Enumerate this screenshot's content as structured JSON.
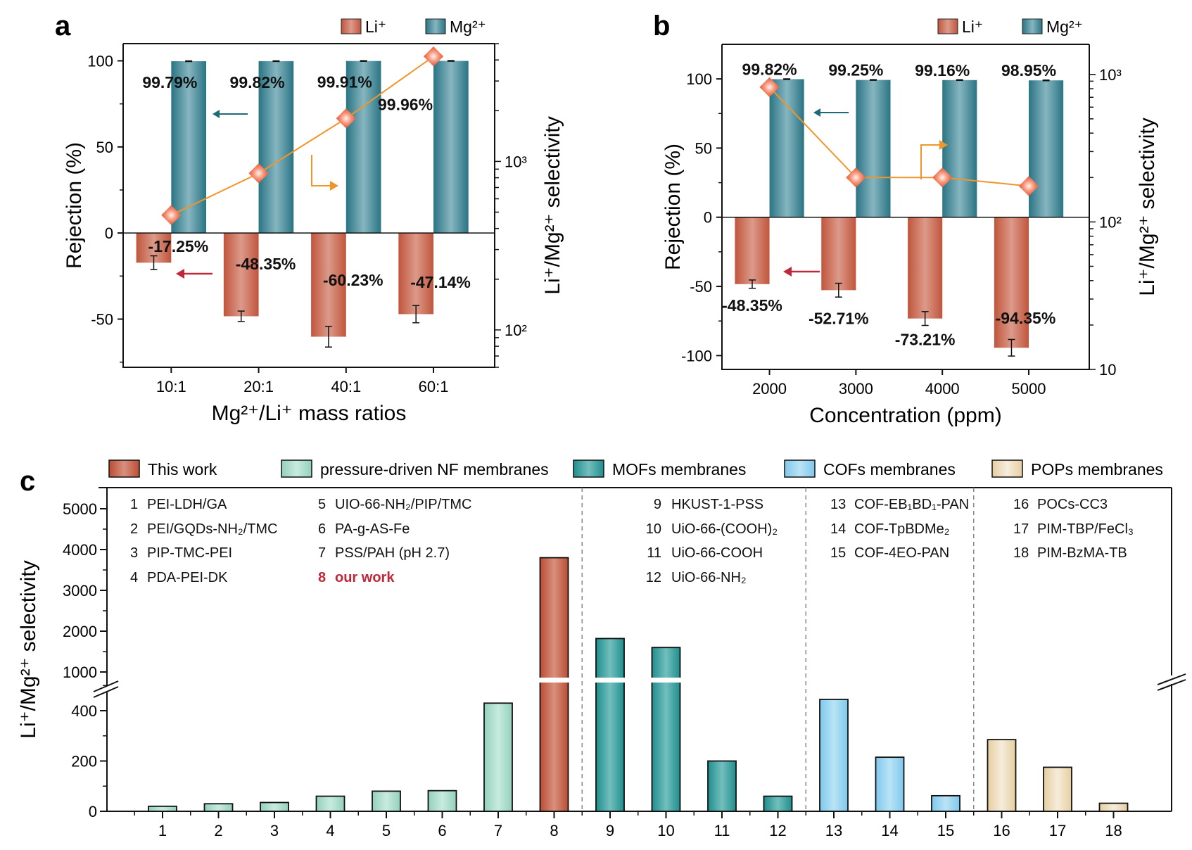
{
  "colors": {
    "li": "#c55a43",
    "mg": "#2f7f8c",
    "line": "#f0952a",
    "marker": "#f27c5a",
    "this_work": "#c55a43",
    "nf": "#a9dccb",
    "mofs": "#2b9a99",
    "cofs": "#8fd1ee",
    "pops": "#ecdcb7",
    "highlight_text": "#c0283a",
    "arrow_mg": "#1f6a78",
    "arrow_li": "#c0283a"
  },
  "chart_data": [
    {
      "panel": "a",
      "type": "bar",
      "panel_label": "a",
      "title": "",
      "xlabel": "Mg²⁺/Li⁺ mass ratios",
      "ylabel": "Rejection (%)",
      "y2label": "Li⁺/Mg²⁺ selectivity",
      "categories": [
        "10:1",
        "20:1",
        "40:1",
        "60:1"
      ],
      "ylim": [
        -78,
        110
      ],
      "yticks": [
        -50,
        0,
        50,
        100
      ],
      "ytick_labels": [
        "-50",
        "0",
        "50",
        "100"
      ],
      "y2_scale": "log",
      "y2lim": [
        60,
        5000
      ],
      "y2ticks": [
        100,
        1000
      ],
      "y2tick_labels": [
        "10²",
        "10³"
      ],
      "legend": [
        "Li⁺",
        "Mg²⁺"
      ],
      "legend_position": "top-right",
      "series": [
        {
          "name": "Li⁺",
          "axis": "left",
          "kind": "bar",
          "values": [
            -17.25,
            -48.35,
            -60.23,
            -47.14
          ],
          "errors": [
            4,
            3,
            6,
            5
          ],
          "labels": [
            "-17.25%",
            "-48.35%",
            "-60.23%",
            "-47.14%"
          ]
        },
        {
          "name": "Mg²⁺",
          "axis": "left",
          "kind": "bar",
          "values": [
            99.79,
            99.82,
            99.91,
            99.96
          ],
          "errors": [
            0.2,
            0.2,
            0.2,
            0.2
          ],
          "labels": [
            "99.79%",
            "99.82%",
            "99.91%",
            "99.96%"
          ]
        },
        {
          "name": "Li⁺/Mg²⁺ selectivity",
          "axis": "right",
          "kind": "line",
          "values": [
            480,
            850,
            1800,
            4200
          ]
        }
      ]
    },
    {
      "panel": "b",
      "type": "bar",
      "panel_label": "b",
      "title": "",
      "xlabel": "Concentration (ppm)",
      "ylabel": "Rejection (%)",
      "y2label": "Li⁺/Mg²⁺ selectivity",
      "categories": [
        "2000",
        "3000",
        "4000",
        "5000"
      ],
      "ylim": [
        -110,
        125
      ],
      "yticks": [
        -100,
        -50,
        0,
        50,
        100
      ],
      "ytick_labels": [
        "-100",
        "-50",
        "0",
        "50",
        "100"
      ],
      "y2_scale": "log",
      "y2lim": [
        10,
        1600
      ],
      "y2ticks": [
        10,
        100,
        1000
      ],
      "y2tick_labels": [
        "10",
        "10²",
        "10³"
      ],
      "legend": [
        "Li⁺",
        "Mg²⁺"
      ],
      "legend_position": "top-right",
      "series": [
        {
          "name": "Li⁺",
          "axis": "left",
          "kind": "bar",
          "values": [
            -48.35,
            -52.71,
            -73.21,
            -94.35
          ],
          "errors": [
            3,
            5,
            5,
            6
          ],
          "labels": [
            "-48.35%",
            "-52.71%",
            "-73.21%",
            "-94.35%"
          ]
        },
        {
          "name": "Mg²⁺",
          "axis": "left",
          "kind": "bar",
          "values": [
            99.82,
            99.25,
            99.16,
            98.95
          ],
          "errors": [
            0.3,
            0.3,
            0.3,
            0.3
          ],
          "labels": [
            "99.82%",
            "99.25%",
            "99.16%",
            "98.95%"
          ]
        },
        {
          "name": "Li⁺/Mg²⁺ selectivity",
          "axis": "right",
          "kind": "line",
          "values": [
            820,
            200,
            200,
            175
          ]
        }
      ]
    },
    {
      "panel": "c",
      "type": "bar",
      "panel_label": "c",
      "title": "",
      "xlabel": "",
      "ylabel": "Li⁺/Mg²⁺ selectivity",
      "categories": [
        "1",
        "2",
        "3",
        "4",
        "5",
        "6",
        "7",
        "8",
        "9",
        "10",
        "11",
        "12",
        "13",
        "14",
        "15",
        "16",
        "17",
        "18"
      ],
      "values": [
        20,
        30,
        35,
        60,
        80,
        82,
        430,
        3800,
        1820,
        1600,
        200,
        60,
        445,
        215,
        62,
        285,
        175,
        32
      ],
      "groups": [
        "nf",
        "nf",
        "nf",
        "nf",
        "nf",
        "nf",
        "nf",
        "this_work",
        "mofs",
        "mofs",
        "mofs",
        "mofs",
        "cofs",
        "cofs",
        "cofs",
        "pops",
        "pops",
        "pops"
      ],
      "y_axis_break": {
        "lower": [
          0,
          500
        ],
        "upper": [
          900,
          5300
        ]
      },
      "yticks_lower": [
        0,
        200,
        400
      ],
      "yticks_upper": [
        1000,
        2000,
        3000,
        4000,
        5000
      ],
      "legend": [
        {
          "key": "this_work",
          "label": "This work"
        },
        {
          "key": "nf",
          "label": "pressure-driven NF membranes"
        },
        {
          "key": "mofs",
          "label": "MOFs membranes"
        },
        {
          "key": "cofs",
          "label": "COFs membranes"
        },
        {
          "key": "pops",
          "label": "POPs membranes"
        }
      ],
      "legend_position": "top",
      "group_separators_after": [
        8,
        12,
        15
      ],
      "annotations": [
        {
          "num": "1",
          "name": "PEI-LDH/GA"
        },
        {
          "num": "2",
          "name": "PEI/GQDs-NH₂/TMC"
        },
        {
          "num": "3",
          "name": "PIP-TMC-PEI"
        },
        {
          "num": "4",
          "name": "PDA-PEI-DK"
        },
        {
          "num": "5",
          "name": "UIO-66-NH₂/PIP/TMC"
        },
        {
          "num": "6",
          "name": "PA-g-AS-Fe"
        },
        {
          "num": "7",
          "name": "PSS/PAH (pH 2.7)"
        },
        {
          "num": "8",
          "name": "our work",
          "highlight": true
        },
        {
          "num": "9",
          "name": "HKUST-1-PSS"
        },
        {
          "num": "10",
          "name": "UiO-66-(COOH)₂"
        },
        {
          "num": "11",
          "name": "UiO-66-COOH"
        },
        {
          "num": "12",
          "name": "UiO-66-NH₂"
        },
        {
          "num": "13",
          "name": "COF-EB₁BD₁-PAN"
        },
        {
          "num": "14",
          "name": "COF-TpBDMe₂"
        },
        {
          "num": "15",
          "name": "COF-4EO-PAN"
        },
        {
          "num": "16",
          "name": "POCs-CC3"
        },
        {
          "num": "17",
          "name": "PIM-TBP/FeCl₃"
        },
        {
          "num": "18",
          "name": "PIM-BzMA-TB"
        }
      ]
    }
  ]
}
